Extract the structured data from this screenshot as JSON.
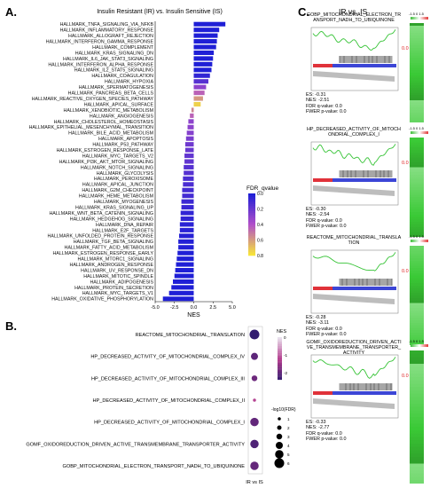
{
  "panels": {
    "a": "A.",
    "b": "B.",
    "c": "C."
  },
  "chart_data": [
    {
      "type": "bar",
      "title": "Insulin Resistant (IR) vs. Insulin Sensitive (IS)",
      "xlabel": "NES",
      "ylabel": "",
      "xlim": [
        -5.0,
        5.0
      ],
      "xticks": [
        "-5.0",
        "-2.5",
        "0.0",
        "2.5",
        "5.0"
      ],
      "orientation": "horizontal",
      "categories": [
        "HALLMARK_TNFA_SIGNALING_VIA_NFKB",
        "HALLMARK_INFLAMMATORY_RESPONSE",
        "HALLMARK_ALLOGRAFT_REJECTION",
        "HALLMARK_INTERFERON_GAMMA_RESPONSE",
        "HALLMARK_COMPLEMENT",
        "HALLMARK_KRAS_SIGNALING_DN",
        "HALLMARK_IL6_JAK_STAT3_SIGNALING",
        "HALLMARK_INTERFERON_ALPHA_RESPONSE",
        "HALLMARK_IL2_STAT5_SIGNALING",
        "HALLMARK_COAGULATION",
        "HALLMARK_HYPOXIA",
        "HALLMARK_SPERMATOGENESIS",
        "HALLMARK_PANCREAS_BETA_CELLS",
        "HALLMARK_REACTIVE_OXYGEN_SPECIES_PATHWAY",
        "HALLMARK_APICAL_SURFACE",
        "HALLMARK_XENOBIOTIC_METABOLISM",
        "HALLMARK_ANGIOGENESIS",
        "HALLMARK_CHOLESTEROL_HOMEOSTASIS",
        "HALLMARK_EPITHELIAL_MESENCHYMAL_TRANSITION",
        "HALLMARK_BILE_ACID_METABOLISM",
        "HALLMARK_APOPTOSIS",
        "HALLMARK_P53_PATHWAY",
        "HALLMARK_ESTROGEN_RESPONSE_LATE",
        "HALLMARK_MYC_TARGETS_V2",
        "HALLMARK_PI3K_AKT_MTOR_SIGNALING",
        "HALLMARK_NOTCH_SIGNALING",
        "HALLMARK_GLYCOLYSIS",
        "HALLMARK_PEROXISOME",
        "HALLMARK_APICAL_JUNCTION",
        "HALLMARK_G2M_CHECKPOINT",
        "HALLMARK_HEME_METABOLISM",
        "HALLMARK_MYOGENESIS",
        "HALLMARK_KRAS_SIGNALING_UP",
        "HALLMARK_WNT_BETA_CATENIN_SIGNALING",
        "HALLMARK_HEDGEHOG_SIGNALING",
        "HALLMARK_DNA_REPAIR",
        "HALLMARK_E2F_TARGETS",
        "HALLMARK_UNFOLDED_PROTEIN_RESPONSE",
        "HALLMARK_TGF_BETA_SIGNALING",
        "HALLMARK_FATTY_ACID_METABOLISM",
        "HALLMARK_ESTROGEN_RESPONSE_EARLY",
        "HALLMARK_MTORC1_SIGNALING",
        "HALLMARK_ANDROGEN_RESPONSE",
        "HALLMARK_UV_RESPONSE_DN",
        "HALLMARK_MITOTIC_SPINDLE",
        "HALLMARK_ADIPOGENESIS",
        "HALLMARK_PROTEIN_SECRETION",
        "HALLMARK_MYC_TARGETS_V1",
        "HALLMARK_OXIDATIVE_PHOSPHORYLATION"
      ],
      "values": [
        4.1,
        3.3,
        3.1,
        3.0,
        2.9,
        2.6,
        2.5,
        2.4,
        2.3,
        2.1,
        1.9,
        1.6,
        1.4,
        1.2,
        0.9,
        -0.3,
        -0.5,
        -0.7,
        -0.8,
        -0.9,
        -1.0,
        -1.1,
        -1.1,
        -1.2,
        -1.2,
        -1.3,
        -1.3,
        -1.4,
        -1.4,
        -1.5,
        -1.5,
        -1.6,
        -1.6,
        -1.7,
        -1.7,
        -1.8,
        -1.8,
        -1.9,
        -2.0,
        -2.0,
        -2.1,
        -2.2,
        -2.3,
        -2.4,
        -2.5,
        -2.7,
        -2.9,
        -3.2,
        -4.0
      ],
      "fdr_qvalue": [
        0.0,
        0.0,
        0.0,
        0.0,
        0.0,
        0.0,
        0.0,
        0.0,
        0.0,
        0.05,
        0.15,
        0.3,
        0.45,
        0.6,
        0.75,
        0.55,
        0.45,
        0.3,
        0.3,
        0.28,
        0.25,
        0.22,
        0.2,
        0.18,
        0.18,
        0.15,
        0.15,
        0.12,
        0.12,
        0.1,
        0.1,
        0.08,
        0.07,
        0.05,
        0.05,
        0.03,
        0.03,
        0.02,
        0.01,
        0.01,
        0.0,
        0.0,
        0.0,
        0.0,
        0.0,
        0.0,
        0.0,
        0.0,
        0.0
      ],
      "colorbar": {
        "label": "FDR_qvalue",
        "ticks": [
          "0.0",
          "0.2",
          "0.4",
          "0.6",
          "0.8"
        ],
        "low_color": "#1f1fd6",
        "mid_color": "#b14fc9",
        "high_color": "#f7e43a"
      },
      "grid": false
    },
    {
      "type": "scatter",
      "xcategories": [
        "IR vs IS"
      ],
      "categories": [
        "REACTOME_MITOCHONDRIAL_TRANSLATION",
        "HP_DECREASED_ACTIVITY_OF_MITOCHONDRIAL_COMPLEX_IV",
        "HP_DECREASED_ACTIVITY_OF_MITOCHONDRIAL_COMPLEX_III",
        "HP_DECREASED_ACTIVITY_OF_MITOCHONDRIAL_COMPLEX_II",
        "HP_DECREASED_ACTIVITY_OF_MITOCHONDRIAL_COMPLEX_I",
        "GOMF_OXIDOREDUCTION_DRIVEN_ACTIVE_TRANSMEMBRANE_TRANSPORTER_ACTIVITY",
        "GOBP_MITOCHONDRIAL_ELECTRON_TRANSPORT_NADH_TO_UBIQUINONE"
      ],
      "nes": [
        -3.11,
        -2.6,
        -2.4,
        -1.5,
        -2.54,
        -2.77,
        -2.51
      ],
      "neg_log10_fdr": [
        6,
        4,
        3,
        1,
        5,
        5,
        5
      ],
      "nes_legend": {
        "label": "NES",
        "ticks": [
          "0",
          "-1",
          "-2"
        ]
      },
      "size_legend": {
        "label": "-log10(FDR)",
        "ticks": [
          "1",
          "2",
          "3",
          "4",
          "5",
          "6"
        ]
      }
    }
  ],
  "gsea": {
    "header": "IR vs. IS",
    "scale_labels": "-1.5 0 1.5",
    "cards": [
      {
        "title": "GOBP_MITOCHONDRIAL_ELECTRON_TRANSPORT_NADH_TO_UBIQUINONE",
        "es": "ES: -0.31",
        "nes": "NES: -2.51",
        "fdr": "FDR q-value: 0.0",
        "fwer": "FWER p-value: 0.0",
        "marker": "0.0"
      },
      {
        "title": "HP_DECREASED_ACTIVITY_OF_MITOCHONDRIAL_COMPLEX_I",
        "es": "ES: -0.30",
        "nes": "NES: -2.54",
        "fdr": "FDR q-value: 0.0",
        "fwer": "FWER p-value: 0.0",
        "marker": "0.0"
      },
      {
        "title": "REACTOME_MITOCHONDRIAL_TRANSLATION",
        "es": "ES: -0.28",
        "nes": "NES: -3.11",
        "fdr": "FDR q-value: 0.0",
        "fwer": "FWER p-value: 0.0",
        "marker": "0.0"
      },
      {
        "title": "GOMF_OXIDOREDUCTION_DRIVEN_ACTIVE_TRANSMEMBRANE_TRANSPORTER_ACTIVITY",
        "es": "ES: -0.33",
        "nes": "NES: -2.77",
        "fdr": "FDR q-value: 0.0",
        "fwer": "FWER p-value: 0.0",
        "marker": "0.0"
      }
    ]
  }
}
